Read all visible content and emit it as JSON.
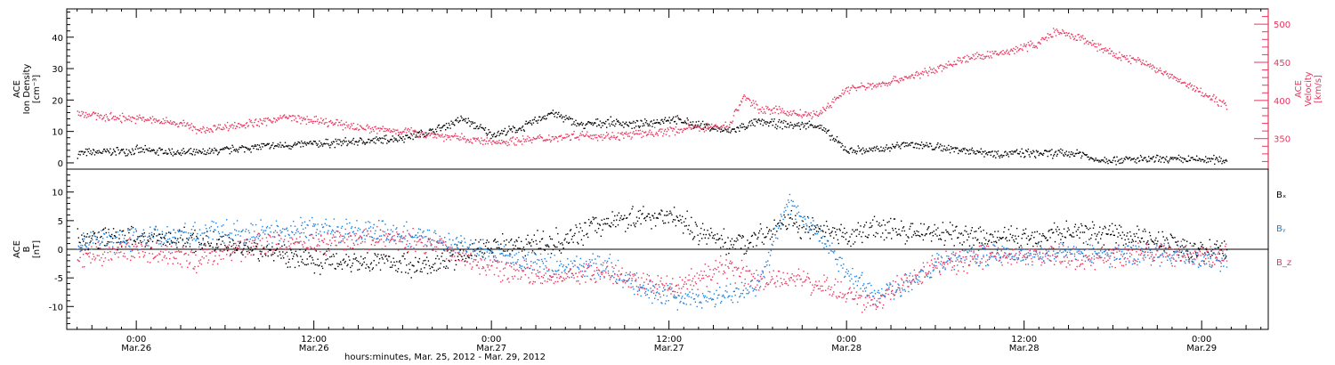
{
  "colors": {
    "black": "#000000",
    "pink": "#e8365f",
    "blue": "#1a82e2",
    "axis": "#000000"
  },
  "x_axis": {
    "label": "hours:minutes, Mar. 25, 2012 - Mar. 29, 2012",
    "ticks": [
      {
        "t": 24,
        "time": "0:00",
        "date": "Mar.26"
      },
      {
        "t": 36,
        "time": "12:00",
        "date": "Mar.26"
      },
      {
        "t": 48,
        "time": "0:00",
        "date": "Mar.27"
      },
      {
        "t": 60,
        "time": "12:00",
        "date": "Mar.27"
      },
      {
        "t": 72,
        "time": "0:00",
        "date": "Mar.28"
      },
      {
        "t": 84,
        "time": "12:00",
        "date": "Mar.28"
      },
      {
        "t": 96,
        "time": "0:00",
        "date": "Mar.29"
      }
    ],
    "range_hours_from_mar25": [
      19.3,
      100.5
    ]
  },
  "chart_data": [
    {
      "type": "scatter",
      "panel": "top",
      "ylabel_left": [
        "ACE",
        "Ion Density",
        "[cm⁻³]"
      ],
      "ylabel_right": [
        "ACE",
        "Velocity",
        "[km/s]"
      ],
      "ylim_left": [
        -2,
        49
      ],
      "ylim_right": [
        310,
        520
      ],
      "yticks_left": [
        0,
        10,
        20,
        30,
        40
      ],
      "yticks_right": [
        350,
        400,
        450,
        500
      ],
      "series": [
        {
          "axis": "left",
          "color": "black",
          "x_hours": [
            20,
            24,
            28,
            32,
            36,
            40,
            42,
            44,
            46,
            48,
            50,
            52,
            54,
            56,
            58,
            60,
            62,
            64,
            66,
            68,
            70,
            71,
            72,
            74,
            76,
            78,
            80,
            82,
            84,
            86,
            88,
            88.5,
            90,
            92,
            94,
            96,
            97.7
          ],
          "values": [
            3,
            4,
            3,
            5,
            6,
            7,
            8,
            10,
            14,
            9,
            11,
            16,
            12,
            13,
            12,
            14,
            12,
            10,
            13,
            12,
            12,
            8,
            4,
            4,
            6,
            5,
            4,
            3,
            3,
            3,
            3,
            1,
            1,
            1,
            1,
            1,
            1
          ]
        },
        {
          "axis": "right",
          "color": "pink",
          "x_hours": [
            20,
            22,
            24,
            26,
            27.5,
            28,
            30,
            32,
            34,
            36,
            38,
            40,
            42,
            44,
            46,
            48,
            50,
            52,
            54,
            56,
            58,
            60,
            62,
            64,
            65,
            66,
            68,
            70,
            72,
            74,
            76,
            78,
            80,
            82,
            84,
            85,
            86,
            88,
            90,
            92,
            94,
            96,
            97.7
          ],
          "values": [
            384,
            378,
            376,
            372,
            368,
            360,
            366,
            370,
            378,
            373,
            368,
            362,
            360,
            355,
            350,
            345,
            348,
            351,
            355,
            353,
            356,
            360,
            365,
            366,
            405,
            390,
            384,
            380,
            415,
            420,
            430,
            440,
            455,
            460,
            470,
            475,
            490,
            480,
            460,
            450,
            430,
            410,
            393
          ]
        }
      ]
    },
    {
      "type": "scatter",
      "panel": "bottom",
      "ylabel_left": [
        "ACE",
        "B",
        "[nT]"
      ],
      "ylim": [
        -14,
        14
      ],
      "yticks": [
        -10,
        -5,
        0,
        5,
        10
      ],
      "zero_line": true,
      "series": [
        {
          "name": "Bₓ",
          "color": "black",
          "x_hours": [
            20,
            24,
            28,
            32,
            36,
            40,
            44,
            48,
            52,
            56,
            60,
            62,
            64,
            66,
            68,
            70,
            72,
            74,
            76,
            78,
            80,
            82,
            84,
            86,
            88,
            90,
            92,
            94,
            96,
            97.7
          ],
          "values": [
            2,
            2,
            1.5,
            0,
            -2,
            -2,
            -3,
            1,
            1,
            5,
            6,
            3,
            1,
            2,
            5,
            3,
            2,
            4,
            3,
            3,
            2,
            2,
            2,
            3,
            3,
            3,
            2,
            1,
            -0.5,
            0
          ]
        },
        {
          "name": "Bᵧ",
          "color": "blue",
          "x_hours": [
            20,
            24,
            28,
            32,
            36,
            40,
            44,
            48,
            52,
            56,
            58,
            60,
            62,
            64,
            66,
            68,
            70,
            72,
            74,
            76,
            78,
            80,
            82,
            84,
            86,
            88,
            90,
            92,
            94,
            96,
            97.7
          ],
          "values": [
            1,
            2,
            2.5,
            3,
            3.5,
            3,
            2,
            -1,
            -3,
            -3,
            -7,
            -8,
            -9,
            -8,
            -6,
            8,
            3,
            -4,
            -8,
            -6,
            -3,
            -1,
            -1,
            -1,
            -0.5,
            -0.5,
            -1,
            -0.5,
            -1,
            -2,
            -2
          ]
        },
        {
          "name": "B_z",
          "color": "pink",
          "x_hours": [
            20,
            24,
            28,
            32,
            36,
            40,
            44,
            48,
            52,
            56,
            58,
            60,
            62,
            64,
            66,
            68,
            70,
            72,
            74,
            76,
            78,
            80,
            82,
            84,
            86,
            88,
            90,
            92,
            94,
            96,
            97.7
          ],
          "values": [
            -1,
            0,
            -2,
            1,
            1,
            2,
            1,
            -3,
            -5,
            -4,
            -6,
            -7,
            -5,
            -3,
            -6,
            -5,
            -6,
            -8,
            -10,
            -5,
            -3,
            -2,
            -1,
            -1,
            -1,
            -1.5,
            -1,
            -0.5,
            -1,
            -1.5,
            -1
          ]
        }
      ]
    }
  ]
}
